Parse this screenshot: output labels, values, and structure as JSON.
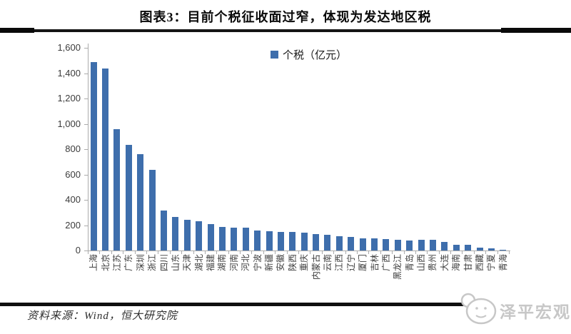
{
  "title": "图表3：目前个税征收面过窄，体现为发达地区税",
  "legend": {
    "label": "个税（亿元）"
  },
  "footer": {
    "source": "资料来源：Wind，恒大研究院",
    "watermark": "泽平宏观"
  },
  "colors": {
    "bar": "#3e6eac",
    "axis": "#ababab",
    "tick_text": "#3c3c3c",
    "watermark": "#c7c7c7"
  },
  "chart_data": {
    "type": "bar",
    "title": "图表3：目前个税征收面过窄，体现为发达地区税",
    "legend_entries": [
      "个税（亿元）"
    ],
    "legend_position": "top-center",
    "xlabel": "",
    "ylabel": "",
    "ylim": [
      0,
      1600
    ],
    "ytick_interval": 200,
    "grid": false,
    "categories": [
      "上海",
      "北京",
      "江苏",
      "广东",
      "深圳",
      "浙江",
      "四川",
      "山东",
      "天津",
      "湖北",
      "福建",
      "湖南",
      "河南",
      "河北",
      "宁波",
      "新疆",
      "安徽",
      "陕西",
      "重庆",
      "内蒙古",
      "云南",
      "江西",
      "辽宁",
      "厦门",
      "吉林",
      "广西",
      "黑龙江",
      "青岛",
      "山西",
      "贵州",
      "大连",
      "海南",
      "甘肃",
      "西藏",
      "宁夏",
      "青海"
    ],
    "values": [
      1490,
      1435,
      960,
      835,
      760,
      635,
      315,
      265,
      240,
      230,
      207,
      185,
      180,
      178,
      157,
      150,
      146,
      144,
      140,
      130,
      122,
      113,
      106,
      98,
      95,
      90,
      82,
      81,
      84,
      83,
      70,
      46,
      44,
      25,
      15,
      8
    ]
  }
}
